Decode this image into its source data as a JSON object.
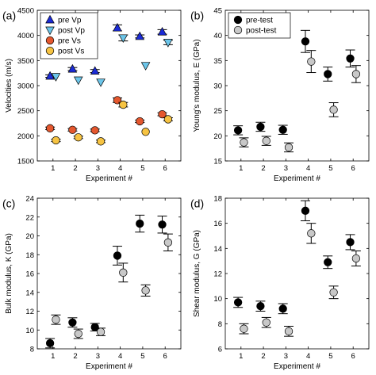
{
  "chart_data": [
    {
      "panel": "(a)",
      "type": "scatter",
      "xlabel": "Experiment #",
      "ylabel": "Velocities (m/s)",
      "xticks": [
        "1",
        "2",
        "3",
        "4",
        "5",
        "6"
      ],
      "yticks": [
        "1500",
        "2000",
        "2500",
        "3000",
        "3500",
        "4000",
        "4500"
      ],
      "xlim": [
        0.3,
        6.7
      ],
      "ylim": [
        1500,
        4500
      ],
      "legend_position": "top-left",
      "series": [
        {
          "name": "pre Vp",
          "marker": "triangle-up",
          "color": "#1b2bd6",
          "values": [
            3190,
            3330,
            3290,
            4150,
            3980,
            4070
          ],
          "error": [
            25,
            30,
            30,
            60,
            30,
            45
          ],
          "errorbars": [
            true,
            true,
            true,
            true,
            true,
            true
          ]
        },
        {
          "name": "post Vp",
          "marker": "triangle-down",
          "color": "#6cc6ea",
          "values": [
            3180,
            3110,
            3070,
            3950,
            3400,
            3860
          ],
          "error": [
            25,
            30,
            30,
            60,
            30,
            45
          ],
          "errorbars": [
            false,
            false,
            false,
            true,
            false,
            true
          ]
        },
        {
          "name": "pre Vs",
          "marker": "circle",
          "color": "#e4572e",
          "values": [
            2150,
            2120,
            2110,
            2710,
            2290,
            2430
          ],
          "error": [
            25,
            25,
            25,
            45,
            25,
            30
          ],
          "errorbars": [
            true,
            true,
            true,
            true,
            true,
            true
          ]
        },
        {
          "name": "post Vs",
          "marker": "circle",
          "color": "#f6c342",
          "values": [
            1910,
            1970,
            1890,
            2620,
            2080,
            2330
          ],
          "error": [
            25,
            25,
            25,
            45,
            25,
            30
          ],
          "errorbars": [
            true,
            true,
            true,
            true,
            false,
            true
          ]
        }
      ]
    },
    {
      "panel": "(b)",
      "type": "scatter",
      "xlabel": "Experiment #",
      "ylabel": "Young's modulus, E (GPa)",
      "xticks": [
        "1",
        "2",
        "3",
        "4",
        "5",
        "6"
      ],
      "yticks": [
        "15",
        "20",
        "25",
        "30",
        "35",
        "40",
        "45"
      ],
      "xlim": [
        0.3,
        6.7
      ],
      "ylim": [
        15,
        45
      ],
      "legend_position": "top-left",
      "series": [
        {
          "name": "pre-test",
          "marker": "circle",
          "color": "#000000",
          "values": [
            21.1,
            21.8,
            21.2,
            38.8,
            32.3,
            35.4
          ],
          "error": [
            0.9,
            0.9,
            0.9,
            2.2,
            1.4,
            1.7
          ]
        },
        {
          "name": "post-test",
          "marker": "circle",
          "color": "#c8c8c8",
          "values": [
            18.7,
            19.0,
            17.7,
            34.8,
            25.2,
            32.3
          ],
          "error": [
            0.9,
            0.9,
            0.9,
            2.2,
            1.4,
            1.7
          ]
        }
      ]
    },
    {
      "panel": "(c)",
      "type": "scatter",
      "xlabel": "Experiment #",
      "ylabel": "Bulk modulus, K (GPa)",
      "xticks": [
        "1",
        "2",
        "3",
        "4",
        "5",
        "6"
      ],
      "yticks": [
        "8",
        "10",
        "12",
        "14",
        "16",
        "18",
        "20",
        "22",
        "24"
      ],
      "xlim": [
        0.3,
        6.7
      ],
      "ylim": [
        8,
        24
      ],
      "series": [
        {
          "name": "pre-test",
          "marker": "circle",
          "color": "#000000",
          "values": [
            8.6,
            10.8,
            10.3,
            17.9,
            21.3,
            21.2
          ],
          "error": [
            0.5,
            0.5,
            0.4,
            1.0,
            0.9,
            0.9
          ]
        },
        {
          "name": "post-test",
          "marker": "circle",
          "color": "#c8c8c8",
          "values": [
            11.1,
            9.6,
            9.8,
            16.1,
            14.2,
            19.3
          ],
          "error": [
            0.5,
            0.5,
            0.4,
            1.0,
            0.6,
            0.9
          ]
        }
      ]
    },
    {
      "panel": "(d)",
      "type": "scatter",
      "xlabel": "Experiment #",
      "ylabel": "Shear modulus, G (GPa)",
      "xticks": [
        "1",
        "2",
        "3",
        "4",
        "5",
        "6"
      ],
      "yticks": [
        "6",
        "8",
        "10",
        "12",
        "14",
        "16",
        "18"
      ],
      "xlim": [
        0.3,
        6.7
      ],
      "ylim": [
        6,
        18
      ],
      "series": [
        {
          "name": "pre-test",
          "marker": "circle",
          "color": "#000000",
          "values": [
            9.7,
            9.4,
            9.2,
            17.0,
            12.9,
            14.5
          ],
          "error": [
            0.4,
            0.4,
            0.4,
            0.8,
            0.5,
            0.6
          ]
        },
        {
          "name": "post-test",
          "marker": "circle",
          "color": "#c8c8c8",
          "values": [
            7.6,
            8.1,
            7.4,
            15.2,
            10.5,
            13.2
          ],
          "error": [
            0.4,
            0.4,
            0.4,
            0.8,
            0.5,
            0.6
          ]
        }
      ]
    }
  ]
}
